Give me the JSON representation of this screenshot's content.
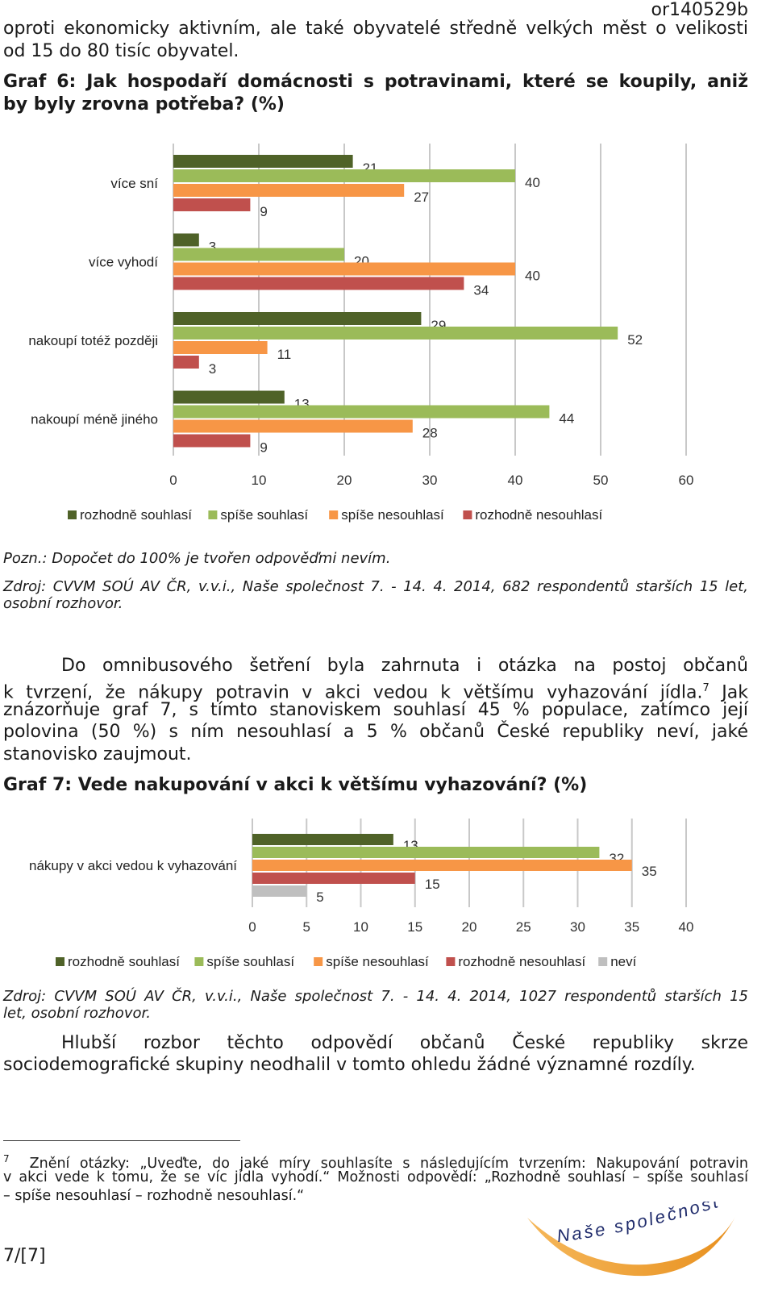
{
  "doc_code": "or140529b",
  "intro": {
    "line1": "oproti ekonomicky aktivním, ale také obyvatelé středně velkých měst o velikosti",
    "line2": "od 15 do 80 tisíc obyvatel."
  },
  "graph6": {
    "title_line1": "Graf 6: Jak hospodaří domácnosti s potravinami, které se koupily, aniž",
    "title_line2": "by byly zrovna potřeba? (%)",
    "note": "Pozn.: Dopočet do 100% je tvořen odpověďmi nevím.",
    "source_line1": "Zdroj: CVVM SOÚ AV ČR, v.v.i., Naše společnost 7. - 14. 4. 2014, 682 respondentů starších 15 let,",
    "source_line2": "osobní rozhovor."
  },
  "paragraph": {
    "line1": "Do omnibusového šetření byla zahrnuta i otázka na postoj občanů",
    "line2": "k tvrzení, že nákupy potravin v akci vedou k většímu vyhazování jídla.",
    "footnote_mark": "7",
    "line2_end": "Jak",
    "line3": "znázorňuje graf 7, s tímto stanoviskem souhlasí 45 % populace, zatímco její",
    "line4": "polovina (50 %) s ním nesouhlasí a 5 % občanů České republiky neví, jaké",
    "line5": "stanovisko zaujmout."
  },
  "graph7": {
    "title": "Graf 7: Vede nakupování v akci k většímu vyhazování? (%)",
    "source_line1": "Zdroj: CVVM SOÚ AV ČR, v.v.i., Naše společnost 7. - 14. 4. 2014, 1027 respondentů starších 15",
    "source_line2": "let, osobní rozhovor."
  },
  "conclusion": {
    "line1": "Hlubší rozbor těchto odpovědí občanů České republiky skrze",
    "line2": "sociodemografické skupiny neodhalil v tomto ohledu žádné významné rozdíly."
  },
  "footnote": {
    "number": "7",
    "line1": "Znění otázky: „Uveďte, do jaké míry souhlasíte s následujícím tvrzením: Nakupování potravin",
    "line2": "v akci vede k tomu, že se víc jídla vyhodí.“ Možnosti odpovědí: „Rozhodně souhlasí – spíše souhlasí",
    "line3": "– spíše nesouhlasí – rozhodně nesouhlasí.“"
  },
  "page_number": "7/[7]",
  "logo_text": "Naše společnost",
  "colors": {
    "rozhodne_souhlasi": "#4f6228",
    "spise_souhlasi": "#9bbb59",
    "spise_nesouhlasi": "#f79646",
    "rozhodne_nesouhlasi": "#c0504d",
    "nevi": "#bfbfbf",
    "grid": "#c8c8c8"
  },
  "chart_data": [
    {
      "type": "bar",
      "orientation": "horizontal",
      "categories": [
        "více sní",
        "více vyhodí",
        "nakoupí totéž později",
        "nakoupí méně jiného"
      ],
      "series": [
        {
          "name": "rozhodně souhlasí",
          "values": [
            21,
            3,
            29,
            13
          ]
        },
        {
          "name": "spíše souhlasí",
          "values": [
            40,
            20,
            52,
            44
          ]
        },
        {
          "name": "spíše nesouhlasí",
          "values": [
            27,
            40,
            11,
            28
          ]
        },
        {
          "name": "rozhodně nesouhlasí",
          "values": [
            9,
            34,
            3,
            9
          ]
        }
      ],
      "xlim": [
        0,
        60
      ],
      "x_ticks": [
        "0",
        "10",
        "20",
        "30",
        "40",
        "50",
        "60"
      ],
      "grid": true,
      "legend": "bottom"
    },
    {
      "type": "bar",
      "orientation": "horizontal",
      "categories": [
        "nákupy v akci vedou k vyhazování"
      ],
      "series": [
        {
          "name": "rozhodně souhlasí",
          "values": [
            13
          ]
        },
        {
          "name": "spíše souhlasí",
          "values": [
            32
          ]
        },
        {
          "name": "spíše nesouhlasí",
          "values": [
            35
          ]
        },
        {
          "name": "rozhodně nesouhlasí",
          "values": [
            15
          ]
        },
        {
          "name": "neví",
          "values": [
            5
          ]
        }
      ],
      "xlim": [
        0,
        40
      ],
      "x_ticks": [
        "0",
        "5",
        "10",
        "15",
        "20",
        "25",
        "30",
        "35",
        "40"
      ],
      "grid": true,
      "legend": "bottom"
    }
  ]
}
